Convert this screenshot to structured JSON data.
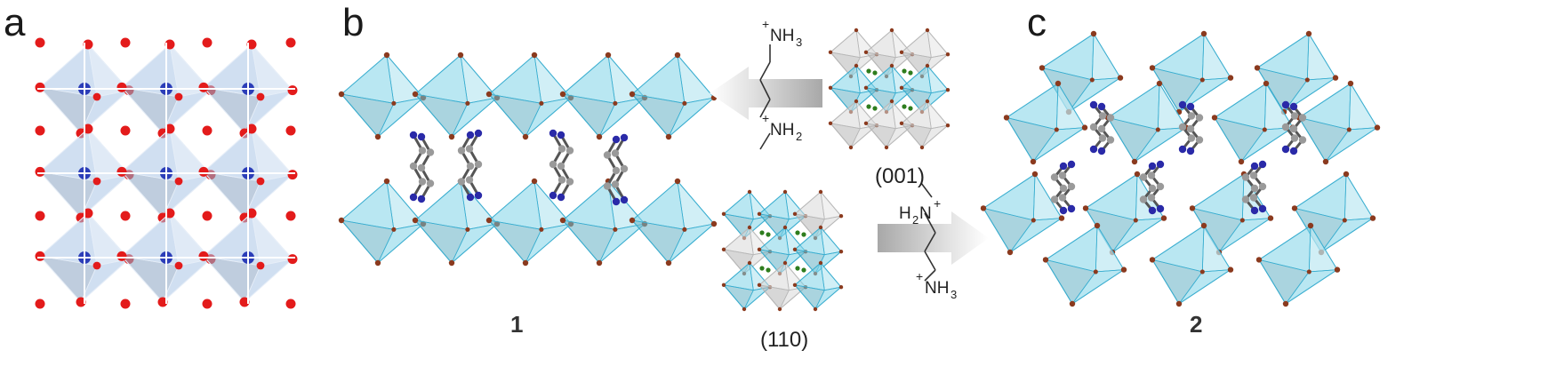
{
  "panels": {
    "a": {
      "letter": "a"
    },
    "b": {
      "letter": "b",
      "compound_label": "1"
    },
    "c": {
      "letter": "c",
      "compound_label": "2"
    }
  },
  "planes": {
    "top": "(001)",
    "bottom": "(110)"
  },
  "cation_top": {
    "charge_1": "+",
    "group_1": "NH",
    "sub_1": "3",
    "charge_2": "+",
    "group_2": "NH",
    "sub_2": "2"
  },
  "cation_bottom": {
    "group_1": "H",
    "sub_1": "2",
    "group_1b": "N",
    "charge_1": "+",
    "charge_2": "+",
    "group_2": "NH",
    "sub_2": "3"
  },
  "colors": {
    "octa_blue": "#a9c4e6",
    "octa_cyan": "#7fd3e8",
    "octa_grey": "#d9d9d9",
    "corner_red": "#e31b1b",
    "corner_brown": "#8b3a1e",
    "center_blue": "#2b3db8",
    "carbon_grey": "#9a9a9a",
    "nitrogen_blue": "#2a2aa8",
    "dot_green": "#2e7d1e",
    "arrow_grey": "#b8b8b8"
  }
}
